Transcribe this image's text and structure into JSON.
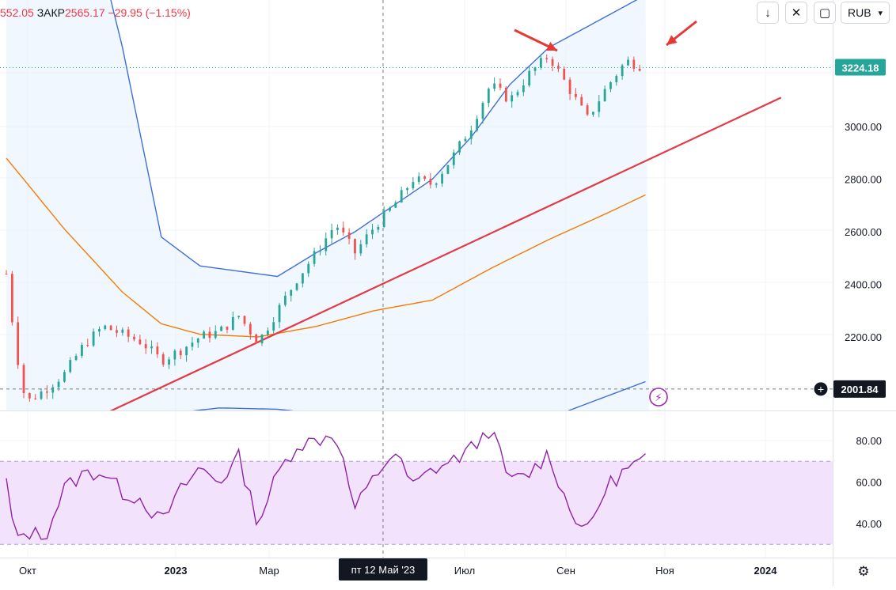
{
  "legend": {
    "open_fragment": "552.05",
    "close_label": "ЗАКР",
    "close_value": "2565.17",
    "change": "−29.95 (−1.15%)"
  },
  "toolbar": {
    "currency": "RUB",
    "buttons": [
      "arrow-down-icon",
      "collapse-icon",
      "fullscreen-icon"
    ],
    "caret": "▾"
  },
  "colors": {
    "up": "#26a69a",
    "down": "#ef5350",
    "upper_band": "#3f6fd8",
    "orange_ma": "#f57c00",
    "trendline": "#e53945",
    "rsi_line": "#8e24aa",
    "rsi_band": "#f3e2fb",
    "price_label_bg": "#26a69a",
    "crosshair_label_bg": "#131722"
  },
  "chart_data": [
    {
      "type": "candlestick",
      "symbol_currency": "RUB",
      "ylim": [
        1900,
        3300
      ],
      "y_ticks": [
        "3000.00",
        "2800.00",
        "2600.00",
        "2400.00",
        "2200.00"
      ],
      "x_ticks": [
        "Окт",
        "2023",
        "Мар",
        "Июл",
        "Сен",
        "Ноя",
        "2024"
      ],
      "last_price": "3224.18",
      "crosshair_price": "2001.84",
      "crosshair_date": "пт 12 Май '23",
      "grid": true,
      "close_approx": [
        {
          "t": 0,
          "v": 2440
        },
        {
          "t": 0.5,
          "v": 2150
        },
        {
          "t": 1,
          "v": 1950
        },
        {
          "t": 2,
          "v": 2000
        },
        {
          "t": 3,
          "v": 2060
        },
        {
          "t": 4,
          "v": 2170
        },
        {
          "t": 5,
          "v": 2240
        },
        {
          "t": 6,
          "v": 2210
        },
        {
          "t": 7,
          "v": 2180
        },
        {
          "t": 8,
          "v": 2110
        },
        {
          "t": 9,
          "v": 2150
        },
        {
          "t": 10,
          "v": 2200
        },
        {
          "t": 11,
          "v": 2220
        },
        {
          "t": 12,
          "v": 2280
        },
        {
          "t": 13,
          "v": 2180
        },
        {
          "t": 14,
          "v": 2300
        },
        {
          "t": 15,
          "v": 2420
        },
        {
          "t": 16,
          "v": 2520
        },
        {
          "t": 17,
          "v": 2630
        },
        {
          "t": 18,
          "v": 2520
        },
        {
          "t": 19,
          "v": 2620
        },
        {
          "t": 20,
          "v": 2700
        },
        {
          "t": 21,
          "v": 2800
        },
        {
          "t": 22,
          "v": 2780
        },
        {
          "t": 23,
          "v": 2880
        },
        {
          "t": 24,
          "v": 3000
        },
        {
          "t": 25,
          "v": 3160
        },
        {
          "t": 26,
          "v": 3100
        },
        {
          "t": 27,
          "v": 3200
        },
        {
          "t": 28,
          "v": 3270
        },
        {
          "t": 29,
          "v": 3150
        },
        {
          "t": 30,
          "v": 3030
        },
        {
          "t": 31,
          "v": 3150
        },
        {
          "t": 32,
          "v": 3250
        },
        {
          "t": 33,
          "v": 3224
        }
      ],
      "upper_band": [
        {
          "t": 4,
          "v": 3900
        },
        {
          "t": 6,
          "v": 3300
        },
        {
          "t": 8,
          "v": 2580
        },
        {
          "t": 10,
          "v": 2470
        },
        {
          "t": 12,
          "v": 2450
        },
        {
          "t": 14,
          "v": 2430
        },
        {
          "t": 16,
          "v": 2520
        },
        {
          "t": 18,
          "v": 2600
        },
        {
          "t": 20,
          "v": 2700
        },
        {
          "t": 22,
          "v": 2800
        },
        {
          "t": 24,
          "v": 2960
        },
        {
          "t": 26,
          "v": 3160
        },
        {
          "t": 28,
          "v": 3300
        },
        {
          "t": 31,
          "v": 3420
        },
        {
          "t": 33,
          "v": 3500
        }
      ],
      "lower_band": [
        {
          "t": 8,
          "v": 1905
        },
        {
          "t": 11,
          "v": 1930
        },
        {
          "t": 14,
          "v": 1925
        },
        {
          "t": 16.5,
          "v": 1905
        },
        {
          "t": 28.5,
          "v": 1905
        },
        {
          "t": 33,
          "v": 2030
        }
      ],
      "orange_ma": [
        {
          "t": 0,
          "v": 2880
        },
        {
          "t": 3,
          "v": 2610
        },
        {
          "t": 6,
          "v": 2370
        },
        {
          "t": 8,
          "v": 2250
        },
        {
          "t": 10,
          "v": 2210
        },
        {
          "t": 13,
          "v": 2200
        },
        {
          "t": 16,
          "v": 2240
        },
        {
          "t": 19,
          "v": 2300
        },
        {
          "t": 22,
          "v": 2340
        },
        {
          "t": 25,
          "v": 2460
        },
        {
          "t": 28,
          "v": 2570
        },
        {
          "t": 31,
          "v": 2670
        },
        {
          "t": 33,
          "v": 2740
        }
      ],
      "trendline": [
        {
          "t": 5,
          "v": 1905
        },
        {
          "t": 40,
          "v": 3110
        }
      ]
    },
    {
      "type": "line",
      "indicator": "RSI",
      "ylim": [
        25,
        92
      ],
      "y_ticks": [
        "80.00",
        "60.00",
        "40.00"
      ],
      "band": [
        30,
        70
      ],
      "values": [
        {
          "t": 0,
          "v": 60
        },
        {
          "t": 0.5,
          "v": 30
        },
        {
          "t": 1,
          "v": 36
        },
        {
          "t": 2,
          "v": 34
        },
        {
          "t": 3,
          "v": 57
        },
        {
          "t": 4,
          "v": 64
        },
        {
          "t": 5,
          "v": 65
        },
        {
          "t": 6,
          "v": 55
        },
        {
          "t": 7,
          "v": 52
        },
        {
          "t": 8,
          "v": 40
        },
        {
          "t": 9,
          "v": 56
        },
        {
          "t": 10,
          "v": 67
        },
        {
          "t": 11,
          "v": 60
        },
        {
          "t": 12,
          "v": 72
        },
        {
          "t": 13,
          "v": 40
        },
        {
          "t": 14,
          "v": 64
        },
        {
          "t": 15,
          "v": 78
        },
        {
          "t": 16,
          "v": 80
        },
        {
          "t": 17,
          "v": 84
        },
        {
          "t": 18,
          "v": 47
        },
        {
          "t": 19,
          "v": 62
        },
        {
          "t": 20,
          "v": 75
        },
        {
          "t": 21,
          "v": 58
        },
        {
          "t": 22,
          "v": 66
        },
        {
          "t": 23,
          "v": 70
        },
        {
          "t": 24,
          "v": 76
        },
        {
          "t": 25,
          "v": 86
        },
        {
          "t": 26,
          "v": 60
        },
        {
          "t": 27,
          "v": 64
        },
        {
          "t": 28,
          "v": 74
        },
        {
          "t": 29,
          "v": 48
        },
        {
          "t": 30,
          "v": 36
        },
        {
          "t": 31,
          "v": 58
        },
        {
          "t": 32,
          "v": 66
        },
        {
          "t": 33,
          "v": 71
        },
        {
          "t": 33.3,
          "v": 57
        }
      ]
    }
  ]
}
